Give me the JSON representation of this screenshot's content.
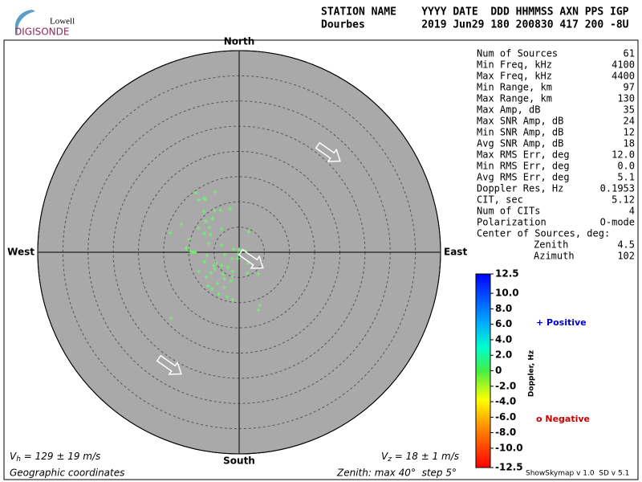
{
  "logo": {
    "line1": "Lowell",
    "line2": "DIGISONDE"
  },
  "header": {
    "labels": "STATION NAME    YYYY DATE  DDD HHMMSS AXN PPS IGP",
    "values": "Dourbes         2019 Jun29 180 200830 417 200 -8U"
  },
  "stats": {
    "rows": [
      [
        "Num of Sources",
        "61"
      ],
      [
        "Min Freq, kHz",
        "4100"
      ],
      [
        "Max Freq, kHz",
        "4400"
      ],
      [
        "Min Range, km",
        "97"
      ],
      [
        "Max Range, km",
        "130"
      ],
      [
        "Max Amp, dB",
        "35"
      ],
      [
        "Max SNR Amp, dB",
        "24"
      ],
      [
        "Min SNR Amp, dB",
        "12"
      ],
      [
        "Avg SNR Amp, dB",
        "18"
      ],
      [
        "Max RMS Err, deg",
        "12.0"
      ],
      [
        "Min RMS Err, deg",
        "0.0"
      ],
      [
        "Avg RMS Err, deg",
        "5.1"
      ],
      [
        "Doppler Res, Hz",
        "0.1953"
      ],
      [
        "CIT, sec",
        "5.12"
      ],
      [
        "Num of CITs",
        "4"
      ],
      [
        "Polarization",
        "O-mode"
      ]
    ],
    "center_title": "Center of Sources, deg:",
    "center_rows": [
      [
        "Zenith",
        "4.5"
      ],
      [
        "Azimuth",
        "102"
      ]
    ]
  },
  "chart_data": {
    "type": "scatter",
    "compass": {
      "north": "North",
      "south": "South",
      "west": "West",
      "east": "East"
    },
    "xlim": [
      -40,
      40
    ],
    "ylim": [
      -40,
      40
    ],
    "rticks": [
      5,
      10,
      15,
      20,
      25,
      30,
      35,
      40
    ],
    "x": [
      -8.6,
      -4.8,
      -6.7,
      -8.0,
      -7.0,
      -1.8,
      -3.7,
      -4.9,
      -7.0,
      -5.3,
      -6.7,
      -11.5,
      -5.9,
      -8.1,
      -3.5,
      -13.7,
      -6.9,
      -5.7,
      1.9,
      -9.9,
      -6.1,
      -3.5,
      -10.5,
      -9.7,
      -9.2,
      -8.8,
      -1.1,
      0,
      1.3,
      -0.2,
      -2.9,
      -6.4,
      -1.4,
      -4.5,
      -5.1,
      -3.5,
      -2.2,
      1.8,
      -8.0,
      -5.6,
      -3.2,
      -1.3,
      3.8,
      1.6,
      -6.5,
      -2.9,
      -4.3,
      -1.6,
      -6.2,
      -2.9,
      -5.4,
      -4.1,
      -2.4,
      -1.3,
      4.1,
      3.8,
      -13.5,
      -1.3,
      -4.8,
      -6.9,
      -0.3
    ],
    "series": [
      {
        "color": "#66ff66",
        "values": [
          11.8,
          12.0,
          10.5,
          10.4,
          10.7,
          8.6,
          8.3,
          8.3,
          8.1,
          6.7,
          6.2,
          5.6,
          4.9,
          4.8,
          4.6,
          3.8,
          3.7,
          3.5,
          4.1,
          2.6,
          1.8,
          1.4,
          0.8,
          0.2,
          0,
          0,
          0.6,
          0.5,
          0.3,
          -0.3,
          -0.5,
          -0.6,
          -1.3,
          -2.1,
          -2.7,
          -2.6,
          -3.0,
          -2.2,
          -3.8,
          -4.1,
          -4.3,
          -3.8,
          -4.3,
          -4.1,
          -4.9,
          -5.3,
          -6.2,
          -5.7,
          -6.7,
          -7.0,
          -7.3,
          -8.3,
          -8.8,
          -9.4,
          -10.5,
          -11.5,
          -13.1,
          -4.8,
          -3.3,
          -1.9,
          -1.3
        ]
      }
    ],
    "colorbar": {
      "title": "Doppler, Hz",
      "lim": [
        -12.5,
        12.5
      ],
      "ticks": [
        12.5,
        {
          "value": 10,
          "label": "10.0"
        },
        {
          "value": 8,
          "label": "8.0"
        },
        {
          "value": 6,
          "label": "6.0"
        },
        {
          "value": 4,
          "label": "4.0"
        },
        {
          "value": 2,
          "label": "2.0"
        },
        0,
        {
          "value": -2,
          "label": "-2.0"
        },
        {
          "value": -4,
          "label": "-4.0"
        },
        {
          "value": -6,
          "label": "-6.0"
        },
        {
          "value": -8,
          "label": "-8.0"
        },
        {
          "value": -10,
          "label": "-10.0"
        },
        -12.5
      ]
    },
    "legend": [
      {
        "name": "Positive",
        "color": "#0000cc"
      },
      {
        "name": "Negative",
        "color": "#cc0000"
      }
    ],
    "velocity": {
      "h": {
        "symbol": "V",
        "sub": "h",
        "text": " = 129 ± 19 m/s"
      },
      "z": {
        "symbol": "V",
        "sub": "z",
        "text": " = 18 ± 1 m/s"
      }
    },
    "coordinates": "Geographic coordinates",
    "zenith_note": "Zenith: max 40°  step 5°",
    "version": "ShowSkymap v 1.0  SD v 5.1"
  }
}
